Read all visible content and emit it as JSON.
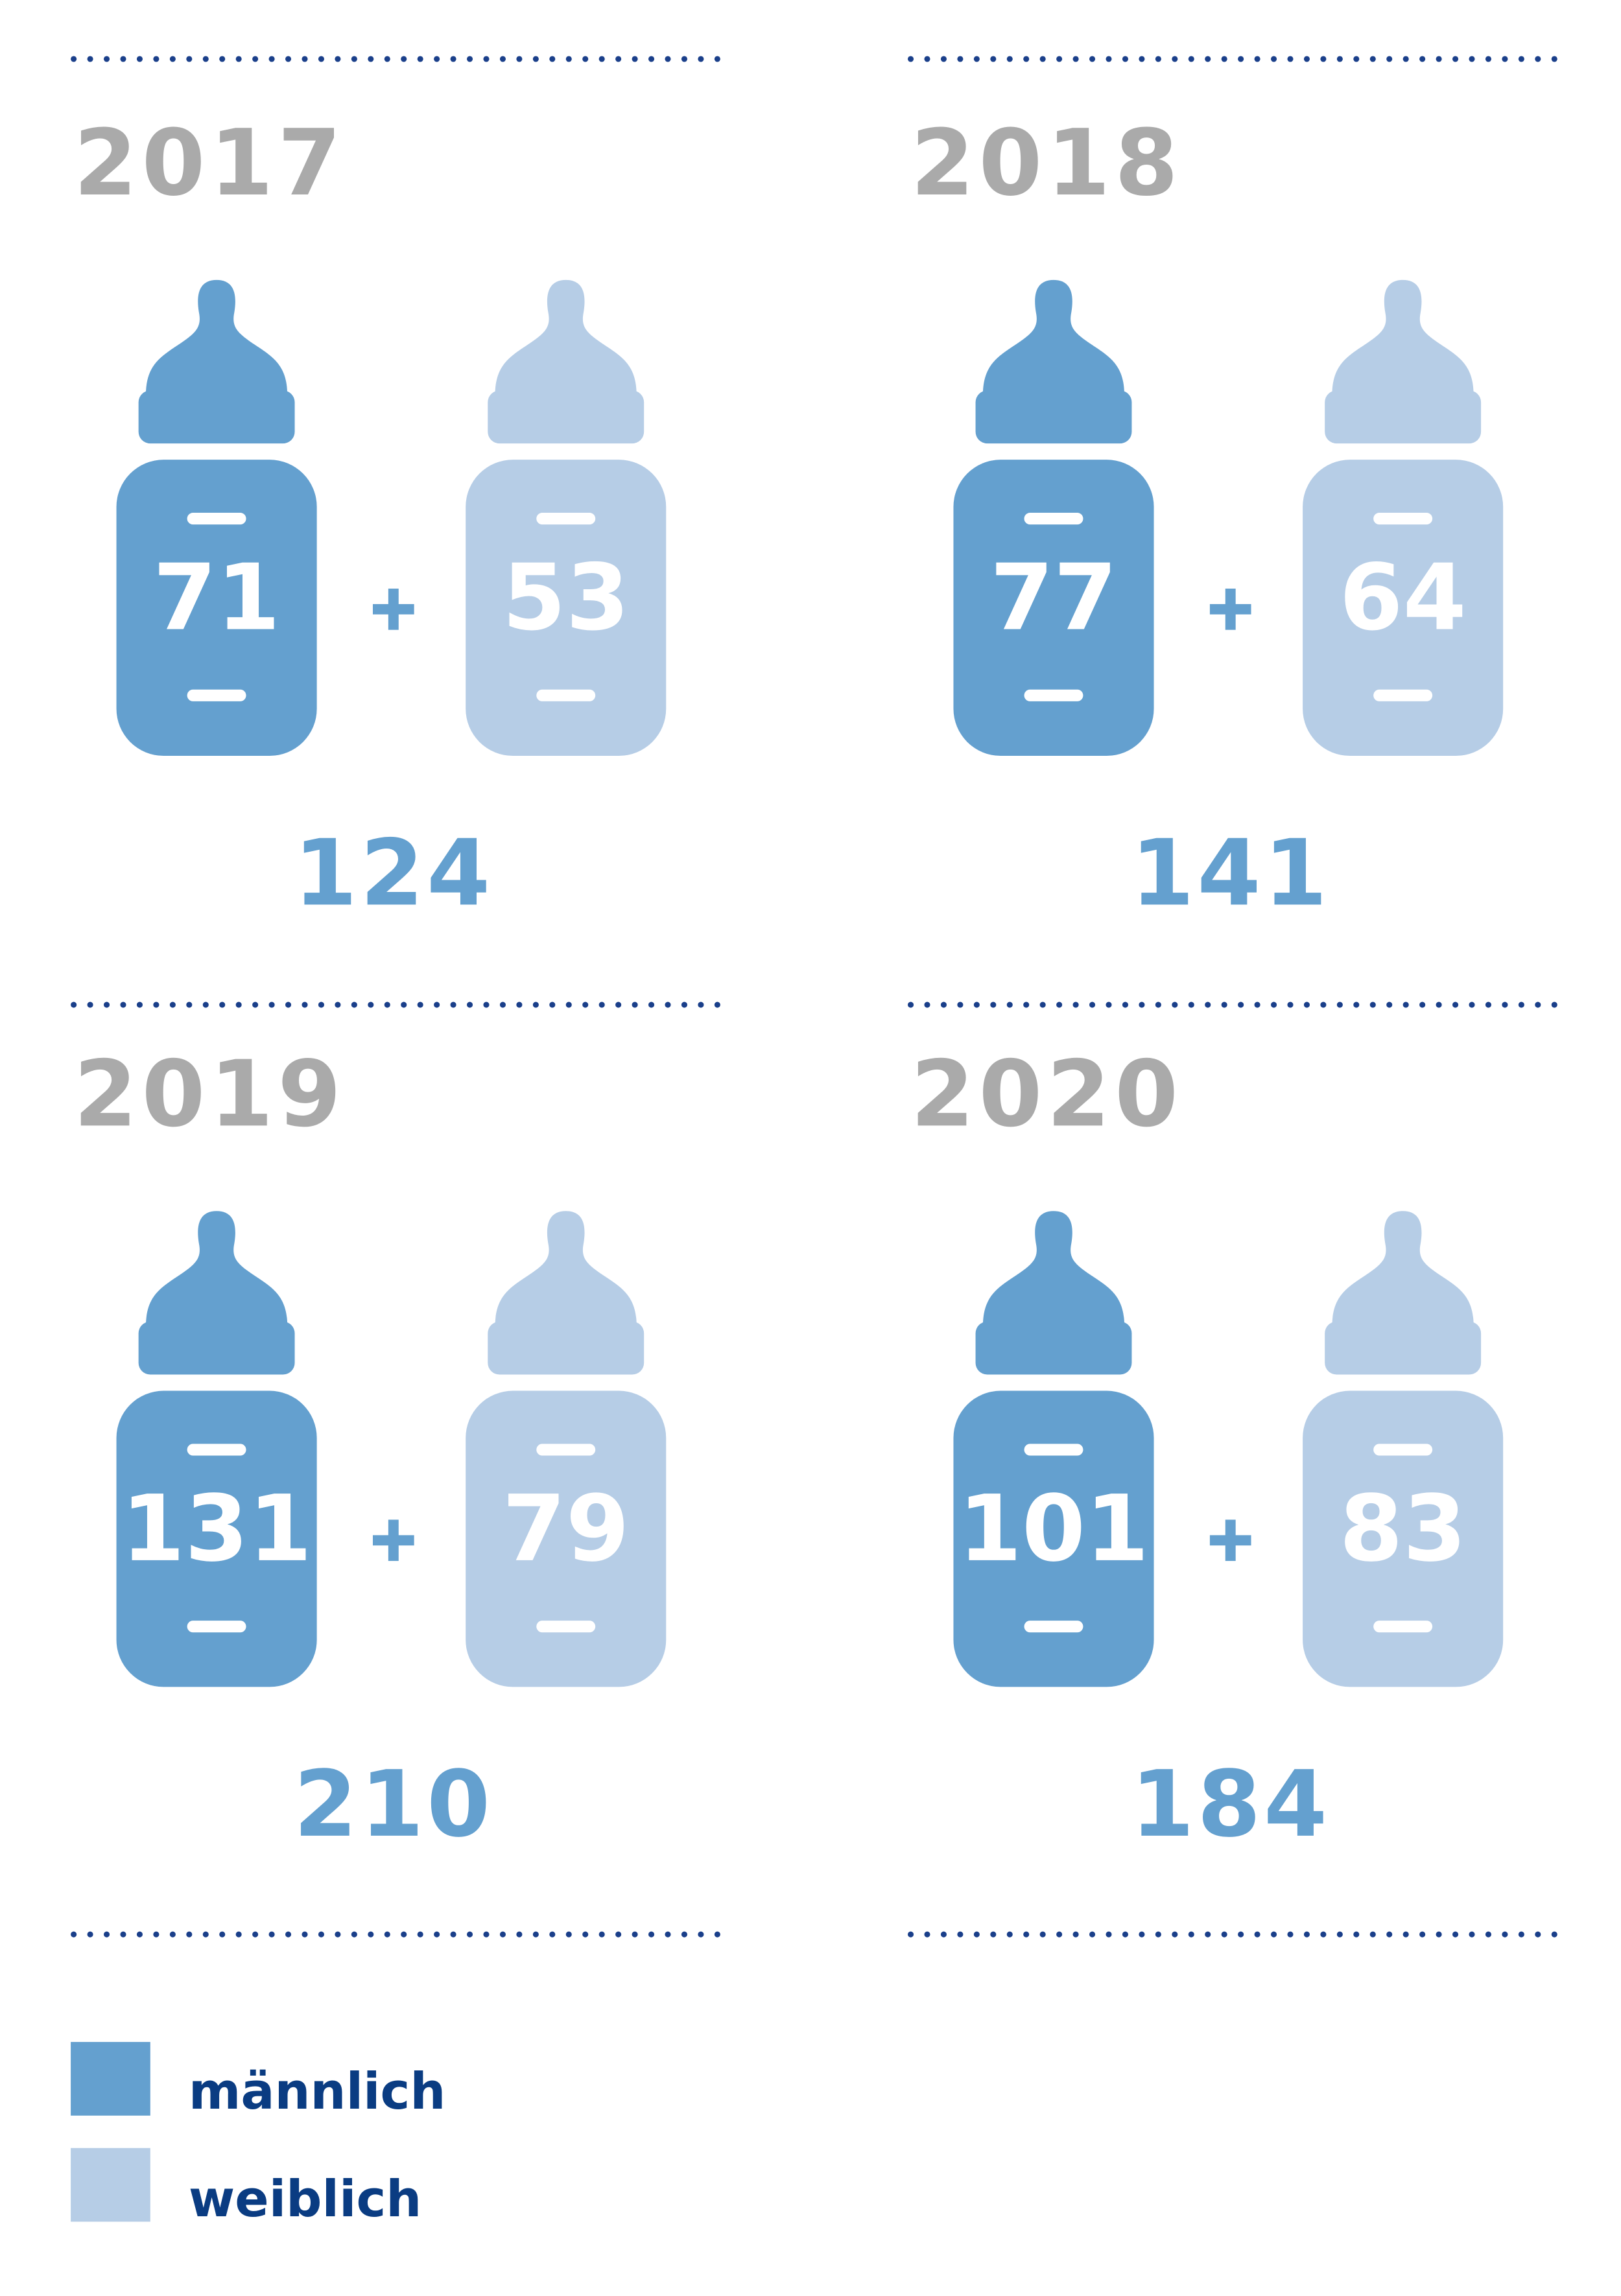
{
  "panels": [
    {
      "year": "2017",
      "male": 71,
      "female": 53,
      "total": 124
    },
    {
      "year": "2018",
      "male": 77,
      "female": 64,
      "total": 141
    },
    {
      "year": "2019",
      "male": 131,
      "female": 79,
      "total": 210
    },
    {
      "year": "2020",
      "male": 101,
      "female": 83,
      "total": 184
    }
  ],
  "legend": {
    "male": "männlich",
    "female": "weiblich"
  }
}
